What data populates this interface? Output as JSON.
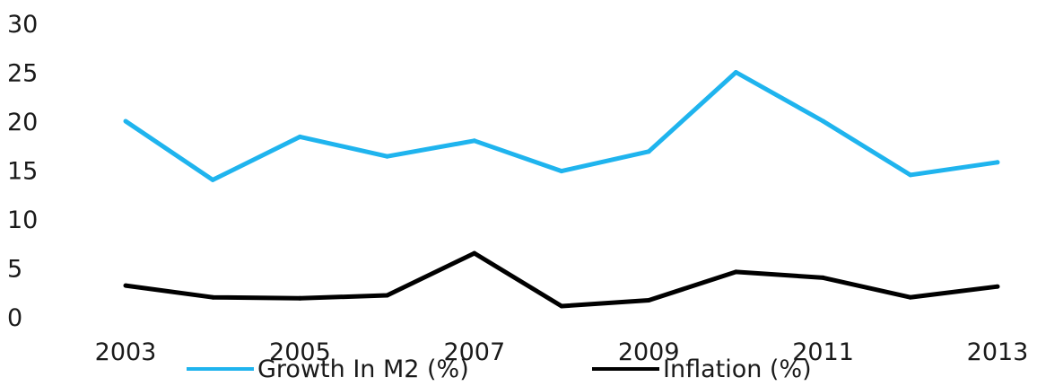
{
  "chart_data": {
    "type": "line",
    "x": [
      2003,
      2004,
      2005,
      2006,
      2007,
      2008,
      2009,
      2010,
      2011,
      2012,
      2013
    ],
    "x_tick_labels": [
      "2003",
      "2005",
      "2007",
      "2009",
      "2011",
      "2013"
    ],
    "y_tick_labels": [
      "0",
      "5",
      "10",
      "15",
      "20",
      "25",
      "30"
    ],
    "ylim": [
      0,
      30
    ],
    "grid": false,
    "legend_position": "bottom",
    "series": [
      {
        "name": "Growth In M2 (%)",
        "color": "#1fb4ee",
        "values": [
          20,
          14,
          18.4,
          16.4,
          18,
          14.9,
          16.9,
          25,
          20,
          14.5,
          15.8
        ]
      },
      {
        "name": "Inflation (%)",
        "color": "#000000",
        "values": [
          3.2,
          2,
          1.9,
          2.2,
          6.5,
          1.1,
          1.7,
          4.6,
          4,
          2,
          3.1
        ]
      }
    ]
  }
}
